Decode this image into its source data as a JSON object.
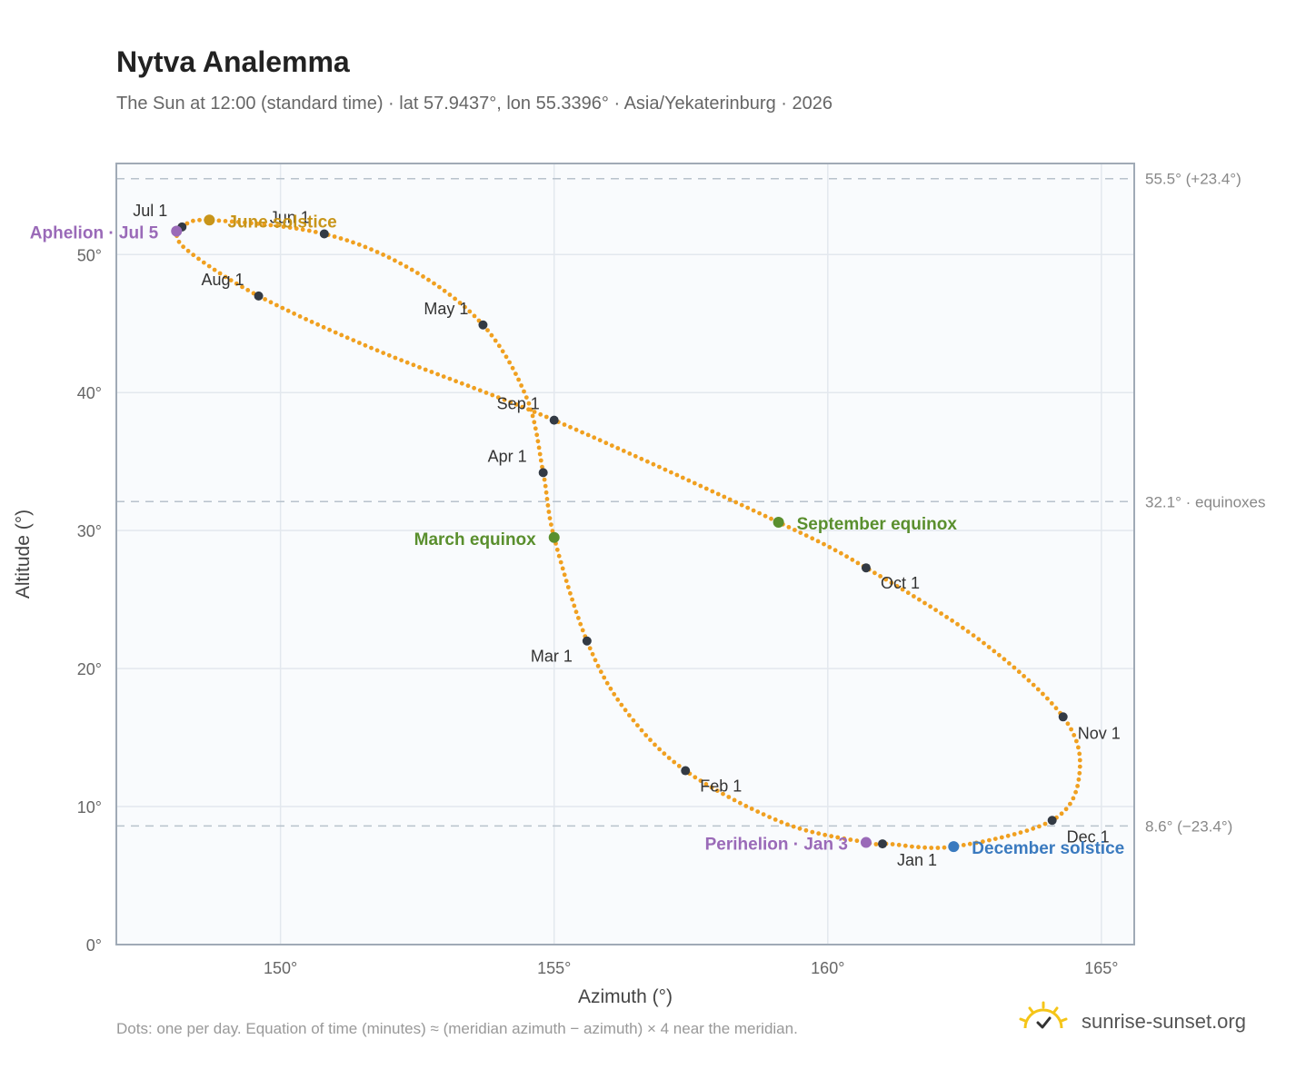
{
  "title": "Nytva Analemma",
  "subtitle": "The Sun at 12:00 (standard time) · lat 57.9437°, lon 55.3396° · Asia/Yekaterinburg · 2026",
  "footer_note": "Dots: one per day. Equation of time (minutes) ≈ (meridian azimuth − azimuth) × 4 near the meridian.",
  "brand": {
    "name": "sunrise-sunset.org",
    "logo_icon": "sun-logo-icon",
    "color": "#f5c518"
  },
  "colors": {
    "curve": "#f0a020",
    "month_marker": "#333a44",
    "solstice_june": "#c8951a",
    "solstice_december": "#3a7abf",
    "equinox": "#5a8f2e",
    "apsis": "#9a6ab8",
    "ref_line": "#b8c2cc",
    "plot_bg": "#f9fbfd",
    "grid": "#e3e8ee",
    "frame": "#a0aab6"
  },
  "chart_data": {
    "type": "scatter",
    "xlabel": "Azimuth (°)",
    "ylabel": "Altitude (°)",
    "xlim": [
      147,
      165.6
    ],
    "ylim": [
      0,
      56.6
    ],
    "xticks": [
      150,
      155,
      160,
      165
    ],
    "yticks": [
      0,
      10,
      20,
      30,
      40,
      50
    ],
    "xtick_labels": [
      "150°",
      "155°",
      "160°",
      "165°"
    ],
    "ytick_labels": [
      "0°",
      "10°",
      "20°",
      "30°",
      "40°",
      "50°"
    ],
    "grid": true,
    "reference_lines": [
      {
        "y": 55.5,
        "label": "55.5° (+23.4°)"
      },
      {
        "y": 32.1,
        "label": "32.1° · equinoxes"
      },
      {
        "y": 8.6,
        "label": "8.6° (−23.4°)"
      }
    ],
    "path_anchors": [
      {
        "date": "Jan 1",
        "az": 161.0,
        "alt": 7.3
      },
      {
        "date": "Jan 3",
        "az": 160.7,
        "alt": 7.4
      },
      {
        "date": "Jan 15",
        "az": 159.2,
        "alt": 8.8
      },
      {
        "date": "Feb 1",
        "az": 157.4,
        "alt": 12.6
      },
      {
        "date": "Feb 15",
        "az": 156.3,
        "alt": 17.0
      },
      {
        "date": "Mar 1",
        "az": 155.6,
        "alt": 22.0
      },
      {
        "date": "Mar 20",
        "az": 155.0,
        "alt": 29.5
      },
      {
        "date": "Apr 1",
        "az": 154.8,
        "alt": 34.2
      },
      {
        "date": "Apr 15",
        "az": 154.5,
        "alt": 39.6
      },
      {
        "date": "May 1",
        "az": 153.7,
        "alt": 44.9
      },
      {
        "date": "May 15",
        "az": 152.4,
        "alt": 48.9
      },
      {
        "date": "Jun 1",
        "az": 150.8,
        "alt": 51.5
      },
      {
        "date": "Jun 21",
        "az": 148.7,
        "alt": 52.5
      },
      {
        "date": "Jul 1",
        "az": 148.2,
        "alt": 52.0
      },
      {
        "date": "Jul 5",
        "az": 148.1,
        "alt": 51.7
      },
      {
        "date": "Jul 15",
        "az": 148.3,
        "alt": 50.3
      },
      {
        "date": "Aug 1",
        "az": 149.6,
        "alt": 47.0
      },
      {
        "date": "Aug 15",
        "az": 151.8,
        "alt": 43.0
      },
      {
        "date": "Sep 1",
        "az": 155.0,
        "alt": 38.0
      },
      {
        "date": "Sep 22",
        "az": 159.1,
        "alt": 30.6
      },
      {
        "date": "Oct 1",
        "az": 160.7,
        "alt": 27.3
      },
      {
        "date": "Oct 15",
        "az": 162.8,
        "alt": 22.0
      },
      {
        "date": "Nov 1",
        "az": 164.3,
        "alt": 16.5
      },
      {
        "date": "Nov 15",
        "az": 164.6,
        "alt": 12.4
      },
      {
        "date": "Dec 1",
        "az": 164.1,
        "alt": 9.0
      },
      {
        "date": "Dec 21",
        "az": 162.3,
        "alt": 7.1
      },
      {
        "date": "Dec 31",
        "az": 161.1,
        "alt": 7.3
      }
    ],
    "month_markers": [
      {
        "label": "Jan 1",
        "az": 161.0,
        "alt": 7.3,
        "anchor": "start",
        "dx": 16,
        "dy": 24
      },
      {
        "label": "Feb 1",
        "az": 157.4,
        "alt": 12.6,
        "anchor": "start",
        "dx": 16,
        "dy": 23
      },
      {
        "label": "Mar 1",
        "az": 155.6,
        "alt": 22.0,
        "anchor": "end",
        "dx": -16,
        "dy": 23
      },
      {
        "label": "Apr 1",
        "az": 154.8,
        "alt": 34.2,
        "anchor": "end",
        "dx": -18,
        "dy": -12
      },
      {
        "label": "May 1",
        "az": 153.7,
        "alt": 44.9,
        "anchor": "end",
        "dx": -16,
        "dy": -12
      },
      {
        "label": "Jun 1",
        "az": 150.8,
        "alt": 51.5,
        "anchor": "end",
        "dx": -16,
        "dy": -12
      },
      {
        "label": "Jul 1",
        "az": 148.2,
        "alt": 52.0,
        "anchor": "end",
        "dx": -16,
        "dy": -12
      },
      {
        "label": "Aug 1",
        "az": 149.6,
        "alt": 47.0,
        "anchor": "end",
        "dx": -16,
        "dy": -12
      },
      {
        "label": "Sep 1",
        "az": 155.0,
        "alt": 38.0,
        "anchor": "end",
        "dx": -16,
        "dy": -12
      },
      {
        "label": "Oct 1",
        "az": 160.7,
        "alt": 27.3,
        "anchor": "start",
        "dx": 16,
        "dy": 23
      },
      {
        "label": "Nov 1",
        "az": 164.3,
        "alt": 16.5,
        "anchor": "start",
        "dx": 16,
        "dy": 24
      },
      {
        "label": "Dec 1",
        "az": 164.1,
        "alt": 9.0,
        "anchor": "start",
        "dx": 16,
        "dy": 24
      }
    ],
    "events": [
      {
        "label": "June solstice",
        "az": 148.7,
        "alt": 52.5,
        "color": "#c8951a",
        "anchor": "start",
        "dx": 20,
        "dy": 8
      },
      {
        "label": "December solstice",
        "az": 162.3,
        "alt": 7.1,
        "color": "#3a7abf",
        "anchor": "start",
        "dx": 20,
        "dy": 8
      },
      {
        "label": "March equinox",
        "az": 155.0,
        "alt": 29.5,
        "color": "#5a8f2e",
        "anchor": "end",
        "dx": -20,
        "dy": 8
      },
      {
        "label": "September equinox",
        "az": 159.1,
        "alt": 30.6,
        "color": "#5a8f2e",
        "anchor": "start",
        "dx": 20,
        "dy": 8
      },
      {
        "label": "Aphelion · Jul 5",
        "az": 148.1,
        "alt": 51.7,
        "color": "#9a6ab8",
        "anchor": "end",
        "dx": -20,
        "dy": 8
      },
      {
        "label": "Perihelion · Jan 3",
        "az": 160.7,
        "alt": 7.4,
        "color": "#9a6ab8",
        "anchor": "end",
        "dx": -20,
        "dy": 8
      }
    ]
  }
}
